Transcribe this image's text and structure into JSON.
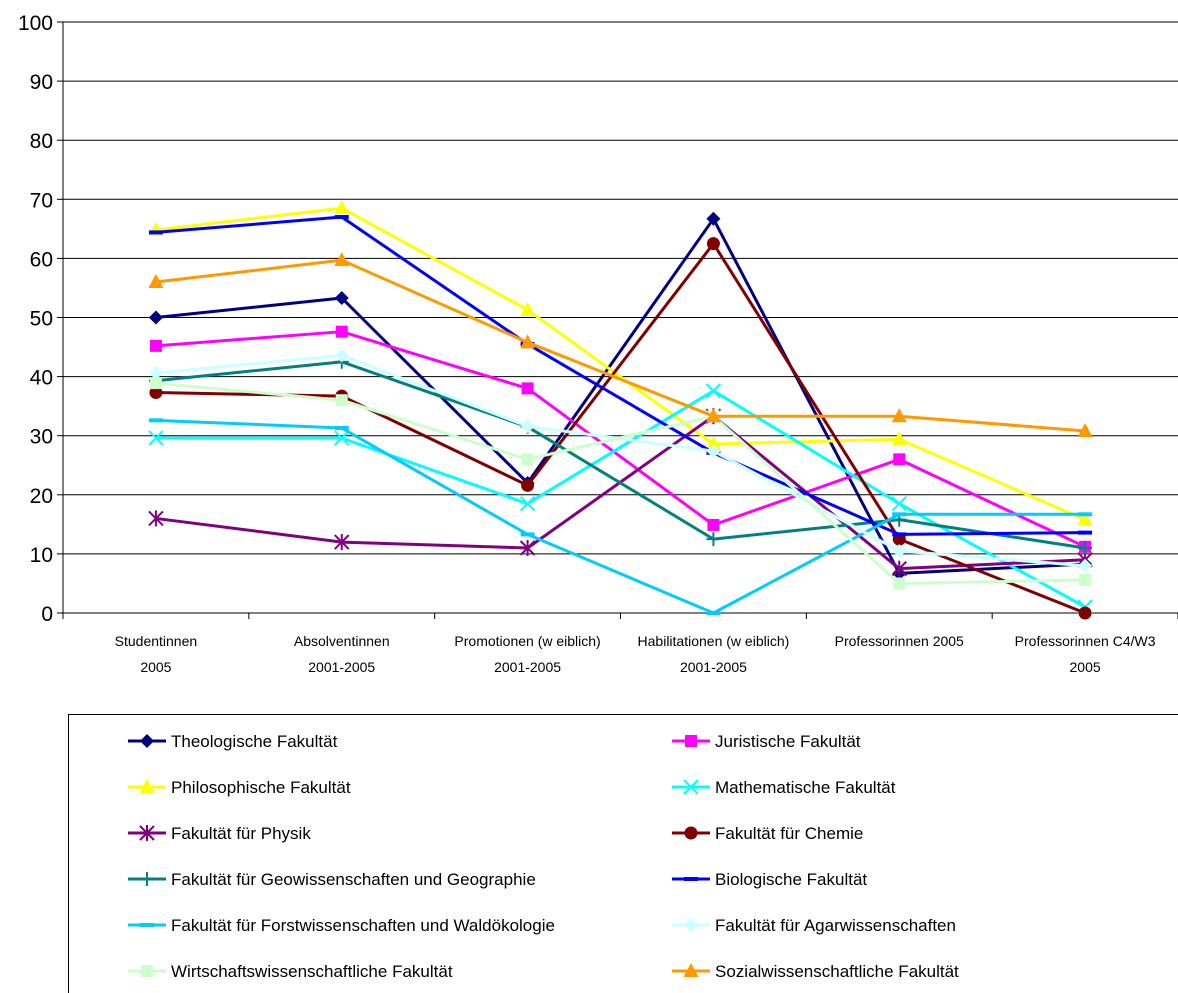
{
  "chart_data": {
    "type": "line",
    "categories": [
      [
        "Studentinnen",
        "2005"
      ],
      [
        "Absolventinnen",
        "2001-2005"
      ],
      [
        "Promotionen (w eiblich)",
        "2001-2005"
      ],
      [
        "Habilitationen (w eiblich)",
        "2001-2005"
      ],
      [
        "Professorinnen 2005"
      ],
      [
        "Professorinnen C4/W3",
        "2005"
      ]
    ],
    "ylim": [
      0,
      100
    ],
    "yticks": [
      "0",
      "10",
      "20",
      "30",
      "40",
      "50",
      "60",
      "70",
      "80",
      "90",
      "100"
    ],
    "grid": "horizontal",
    "legend": "bottom",
    "series": [
      {
        "name": "Theologische Fakultät",
        "color": "#000080",
        "marker": "diamond",
        "values": [
          50,
          53.3,
          22,
          66.7,
          6.7,
          8.3
        ]
      },
      {
        "name": "Juristische Fakultät",
        "color": "#ff00ff",
        "marker": "square",
        "values": [
          45.2,
          47.6,
          38,
          14.9,
          26,
          11.2
        ]
      },
      {
        "name": "Philosophische Fakultät",
        "color": "#ffff00",
        "marker": "triangle",
        "values": [
          64.8,
          68.5,
          51.3,
          28.6,
          29.4,
          15.8
        ]
      },
      {
        "name": "Mathematische Fakultät",
        "color": "#00ffff",
        "marker": "x",
        "values": [
          29.6,
          29.6,
          18.5,
          37.6,
          18.5,
          1
        ]
      },
      {
        "name": "Fakultät für Physik",
        "color": "#800080",
        "marker": "asterisk",
        "values": [
          16,
          12,
          11,
          33.3,
          7.5,
          9
        ]
      },
      {
        "name": "Fakultät für Chemie",
        "color": "#800000",
        "marker": "circle",
        "values": [
          37.3,
          36.7,
          21.6,
          62.5,
          12.5,
          0
        ]
      },
      {
        "name": "Fakultät für Geowissenschaften und Geographie",
        "color": "#008080",
        "marker": "plus",
        "values": [
          39.3,
          42.5,
          31.5,
          12.5,
          15.8,
          11
        ]
      },
      {
        "name": "Biologische Fakultät",
        "color": "#0000ff",
        "marker": "dash",
        "values": [
          64.4,
          67,
          45.5,
          27.1,
          13.3,
          13.6
        ]
      },
      {
        "name": "Fakultät für Forstwissenschaften und Waldökologie",
        "color": "#00ccff",
        "marker": "dash",
        "values": [
          32.6,
          31.3,
          13.3,
          0,
          16.7,
          16.7
        ]
      },
      {
        "name": "Fakultät für Agarwissenschaften",
        "color": "#ccffff",
        "marker": "diamond",
        "values": [
          40.6,
          43.6,
          31.6,
          27.4,
          10.5,
          8
        ]
      },
      {
        "name": "Wirtschaftswissenschaftliche Fakultät",
        "color": "#ccffcc",
        "marker": "square",
        "values": [
          38.9,
          36,
          26,
          33.3,
          5,
          5.6
        ]
      },
      {
        "name": "Sozialwissenschaftliche Fakultät",
        "color": "#ff9900",
        "marker": "triangle",
        "values": [
          56,
          59.7,
          45.8,
          33.3,
          33.3,
          30.8
        ]
      }
    ]
  }
}
